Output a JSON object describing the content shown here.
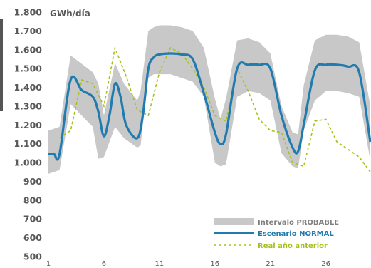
{
  "chart_data": {
    "type": "line",
    "unit_label": "GWh/día",
    "ylim": [
      500,
      1800
    ],
    "yticks": [
      1800,
      1700,
      1600,
      1500,
      1400,
      1300,
      1200,
      1100,
      1000,
      900,
      800,
      700,
      600,
      500
    ],
    "ytick_labels": [
      "1.800",
      "1.700",
      "1.600",
      "1.500",
      "1.400",
      "1.300",
      "1.200",
      "1.100",
      "1.000",
      "900",
      "800",
      "700",
      "600",
      "500"
    ],
    "xlim": [
      1,
      30
    ],
    "xticks": [
      1,
      6,
      11,
      16,
      21,
      26
    ],
    "xtick_labels": [
      "1",
      "6",
      "11",
      "16",
      "21",
      "26"
    ],
    "grid": false,
    "legend_position": "bottom-right",
    "colors": {
      "band": "#c8c8c8",
      "normal": "#1f7bb0",
      "previous": "#a5c21a"
    },
    "series": [
      {
        "name": "Intervalo PROBABLE",
        "kind": "band",
        "x": [
          1,
          1.5,
          2,
          3,
          5,
          5.5,
          6,
          7,
          7.8,
          9,
          9.3,
          10,
          10.5,
          11,
          12,
          13,
          14,
          15,
          16,
          16.5,
          17,
          18,
          19,
          20,
          21,
          22,
          23,
          23.5,
          24,
          25,
          26,
          27,
          28,
          29,
          30
        ],
        "lower": [
          940,
          950,
          960,
          1310,
          1190,
          1020,
          1030,
          1190,
          1130,
          1080,
          1090,
          1450,
          1470,
          1470,
          1470,
          1450,
          1430,
          1350,
          1000,
          980,
          990,
          1350,
          1380,
          1370,
          1330,
          1050,
          980,
          970,
          1170,
          1330,
          1380,
          1380,
          1370,
          1350,
          1010
        ],
        "upper": [
          1170,
          1180,
          1190,
          1570,
          1480,
          1420,
          1250,
          1530,
          1420,
          1330,
          1380,
          1700,
          1720,
          1730,
          1730,
          1720,
          1700,
          1610,
          1340,
          1230,
          1340,
          1650,
          1660,
          1640,
          1580,
          1300,
          1160,
          1150,
          1410,
          1650,
          1680,
          1680,
          1670,
          1640,
          1300
        ]
      },
      {
        "name": "Escenario NORMAL",
        "kind": "line",
        "x": [
          1,
          1.5,
          2,
          3,
          4,
          5,
          5.5,
          6,
          6.5,
          7,
          7.5,
          8,
          9,
          9.5,
          10,
          10.5,
          11,
          12,
          13,
          14,
          15,
          16,
          16.5,
          17,
          18,
          19,
          20,
          21,
          22,
          23,
          23.5,
          24,
          25,
          26,
          27,
          28,
          29,
          30
        ],
        "values": [
          1045,
          1045,
          1045,
          1440,
          1385,
          1350,
          1270,
          1140,
          1250,
          1420,
          1350,
          1200,
          1130,
          1250,
          1500,
          1560,
          1575,
          1580,
          1575,
          1550,
          1370,
          1160,
          1100,
          1150,
          1500,
          1520,
          1520,
          1500,
          1250,
          1080,
          1060,
          1200,
          1490,
          1520,
          1520,
          1510,
          1480,
          1110
        ]
      },
      {
        "name": "Real año anterior",
        "kind": "dashed",
        "x": [
          2,
          3,
          4,
          5,
          6,
          7,
          8,
          9,
          10,
          11,
          12,
          13,
          14,
          15,
          16,
          17,
          18,
          19,
          20,
          21,
          22,
          23,
          24,
          25,
          26,
          27,
          28,
          29,
          30
        ],
        "values": [
          1130,
          1170,
          1440,
          1420,
          1300,
          1610,
          1460,
          1280,
          1250,
          1480,
          1610,
          1580,
          1500,
          1400,
          1250,
          1220,
          1500,
          1380,
          1230,
          1170,
          1160,
          1000,
          980,
          1220,
          1230,
          1110,
          1070,
          1030,
          950
        ]
      }
    ],
    "legend_labels": [
      "Intervalo PROBABLE",
      "Escenario NORMAL",
      "Real año anterior"
    ]
  }
}
